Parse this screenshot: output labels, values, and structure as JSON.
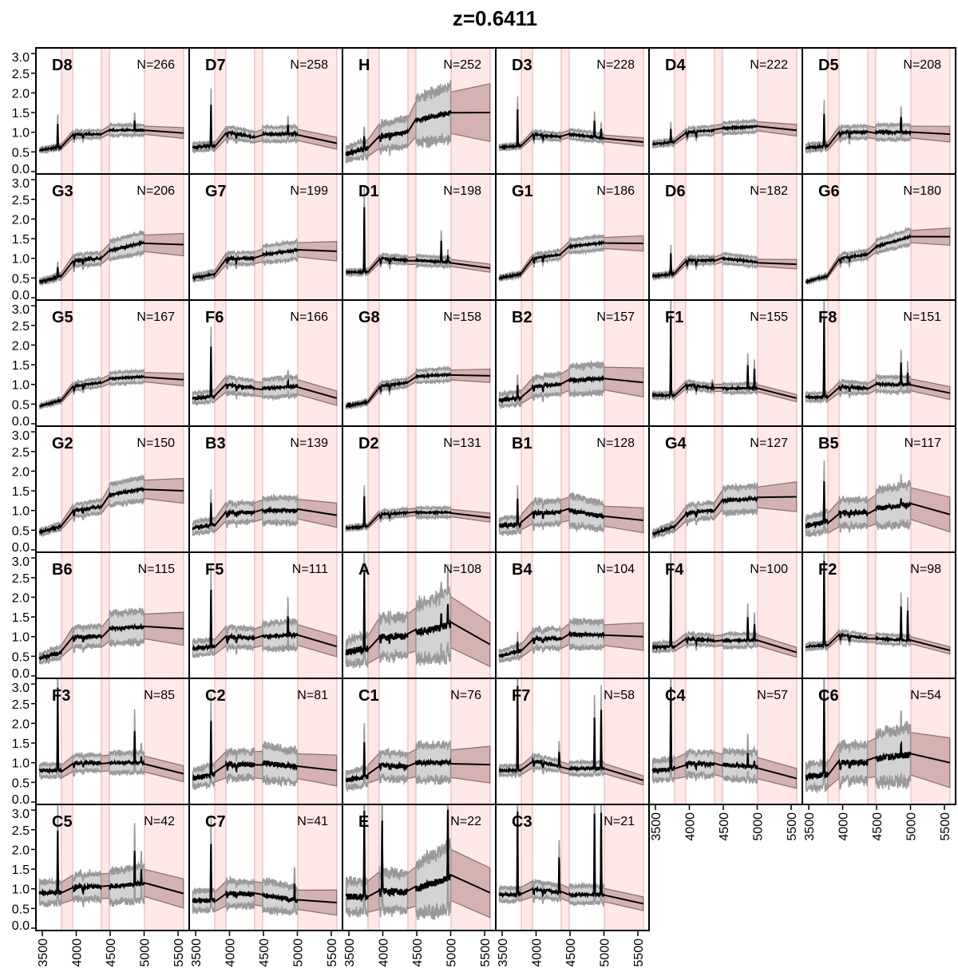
{
  "chart_data": {
    "type": "line",
    "title": "z=0.6411",
    "xlabel": "",
    "ylabel": "",
    "xlim": [
      3405,
      5665
    ],
    "ylim": [
      -0.05,
      3.1
    ],
    "xticks": [
      3500,
      4000,
      4500,
      5000,
      5500
    ],
    "xtick_labels": [
      "3500",
      "4000",
      "4500",
      "5000",
      "5500"
    ],
    "yticks": [
      0.0,
      0.5,
      1.0,
      1.5,
      2.0,
      2.5,
      3.0
    ],
    "ytick_labels": [
      "0.0",
      "0.5",
      "1.0",
      "1.5",
      "2.0",
      "2.5",
      "3.0"
    ],
    "grid": false,
    "masked_regions": [
      [
        3782,
        3947
      ],
      [
        4370,
        4488
      ],
      [
        5006,
        5582
      ]
    ],
    "data_segments": [
      [
        3460,
        3782
      ],
      [
        3947,
        4370
      ],
      [
        4488,
        5000
      ]
    ],
    "knot_wavelengths": [
      3460,
      3780,
      3950,
      4370,
      4490,
      5000,
      5580
    ],
    "colors": {
      "mean": "#000000",
      "error_band": "#d3d3d3",
      "error_edge": "#999999",
      "interp_band": "#b08585",
      "mask": "#ffd6d6"
    },
    "panels": [
      {
        "label": "D8",
        "n": "N=266",
        "knots": [
          0.55,
          0.62,
          0.95,
          0.95,
          1.05,
          1.05,
          0.98
        ],
        "err": 0.1,
        "lines": [
          [
            3727,
            1.25
          ],
          [
            4861,
            1.3
          ]
        ]
      },
      {
        "label": "D7",
        "n": "N=258",
        "knots": [
          0.62,
          0.65,
          1.0,
          0.88,
          0.95,
          0.95,
          0.72
        ],
        "err": 0.15,
        "lines": [
          [
            3727,
            1.7
          ],
          [
            4861,
            1.2
          ],
          [
            4959,
            1.0
          ]
        ]
      },
      {
        "label": "H",
        "n": "N=252",
        "knots": [
          0.45,
          0.6,
          0.9,
          1.0,
          1.3,
          1.5,
          1.5
        ],
        "err": 0.35,
        "lines": [
          [
            3727,
            0.9
          ]
        ]
      },
      {
        "label": "D3",
        "n": "N=228",
        "knots": [
          0.62,
          0.65,
          0.95,
          0.88,
          0.95,
          0.85,
          0.75
        ],
        "err": 0.1,
        "lines": [
          [
            3727,
            1.6
          ],
          [
            4861,
            1.3
          ],
          [
            4959,
            1.1
          ]
        ]
      },
      {
        "label": "D4",
        "n": "N=222",
        "knots": [
          0.7,
          0.75,
          1.0,
          1.05,
          1.1,
          1.15,
          1.05
        ],
        "err": 0.1,
        "lines": [
          [
            3727,
            1.1
          ]
        ]
      },
      {
        "label": "D5",
        "n": "N=208",
        "knots": [
          0.6,
          0.65,
          1.0,
          1.0,
          1.0,
          1.0,
          0.95
        ],
        "err": 0.15,
        "lines": [
          [
            3727,
            1.5
          ],
          [
            4861,
            1.4
          ]
        ]
      },
      {
        "label": "G3",
        "n": "N=206",
        "knots": [
          0.4,
          0.55,
          0.95,
          1.0,
          1.2,
          1.4,
          1.35
        ],
        "err": 0.15,
        "lines": [
          [
            3727,
            0.8
          ]
        ]
      },
      {
        "label": "G7",
        "n": "N=199",
        "knots": [
          0.5,
          0.6,
          1.0,
          1.0,
          1.1,
          1.2,
          1.18
        ],
        "err": 0.15,
        "lines": []
      },
      {
        "label": "D1",
        "n": "N=198",
        "knots": [
          0.65,
          0.65,
          1.0,
          0.95,
          0.95,
          0.9,
          0.75
        ],
        "err": 0.1,
        "lines": [
          [
            3727,
            2.35
          ],
          [
            4861,
            1.45
          ],
          [
            4959,
            1.1
          ]
        ]
      },
      {
        "label": "G1",
        "n": "N=186",
        "knots": [
          0.5,
          0.6,
          1.0,
          1.1,
          1.3,
          1.4,
          1.38
        ],
        "err": 0.1,
        "lines": []
      },
      {
        "label": "D6",
        "n": "N=182",
        "knots": [
          0.55,
          0.6,
          0.95,
          0.95,
          1.0,
          0.9,
          0.85
        ],
        "err": 0.1,
        "lines": [
          [
            3727,
            1.15
          ]
        ]
      },
      {
        "label": "G6",
        "n": "N=180",
        "knots": [
          0.4,
          0.55,
          1.0,
          1.1,
          1.3,
          1.55,
          1.55
        ],
        "err": 0.1,
        "lines": []
      },
      {
        "label": "G5",
        "n": "N=167",
        "knots": [
          0.45,
          0.6,
          0.95,
          1.05,
          1.15,
          1.2,
          1.12
        ],
        "err": 0.1,
        "lines": []
      },
      {
        "label": "F6",
        "n": "N=166",
        "knots": [
          0.65,
          0.7,
          1.0,
          0.9,
          0.9,
          0.95,
          0.65
        ],
        "err": 0.2,
        "lines": [
          [
            3727,
            2.0
          ],
          [
            4861,
            1.1
          ]
        ]
      },
      {
        "label": "G8",
        "n": "N=158",
        "knots": [
          0.45,
          0.55,
          0.95,
          1.05,
          1.2,
          1.25,
          1.22
        ],
        "err": 0.1,
        "lines": []
      },
      {
        "label": "B2",
        "n": "N=157",
        "knots": [
          0.6,
          0.65,
          0.95,
          1.0,
          1.1,
          1.15,
          1.05
        ],
        "err": 0.25,
        "lines": [
          [
            3727,
            1.0
          ]
        ]
      },
      {
        "label": "F1",
        "n": "N=155",
        "knots": [
          0.72,
          0.72,
          1.0,
          0.9,
          0.9,
          0.9,
          0.65
        ],
        "err": 0.1,
        "lines": [
          [
            3727,
            2.8
          ],
          [
            4340,
            1.0
          ],
          [
            4861,
            1.5
          ],
          [
            4959,
            1.4
          ]
        ]
      },
      {
        "label": "F8",
        "n": "N=151",
        "knots": [
          0.68,
          0.68,
          0.95,
          0.9,
          1.0,
          1.0,
          0.78
        ],
        "err": 0.15,
        "lines": [
          [
            3727,
            2.8
          ],
          [
            4861,
            1.55
          ],
          [
            4959,
            1.3
          ]
        ]
      },
      {
        "label": "G2",
        "n": "N=150",
        "knots": [
          0.45,
          0.6,
          1.0,
          1.1,
          1.4,
          1.55,
          1.5
        ],
        "err": 0.15,
        "lines": []
      },
      {
        "label": "B3",
        "n": "N=139",
        "knots": [
          0.55,
          0.65,
          0.95,
          0.95,
          1.0,
          1.0,
          0.88
        ],
        "err": 0.25,
        "lines": [
          [
            3727,
            1.2
          ]
        ]
      },
      {
        "label": "D2",
        "n": "N=131",
        "knots": [
          0.55,
          0.6,
          0.9,
          0.95,
          0.95,
          0.95,
          0.82
        ],
        "err": 0.1,
        "lines": [
          [
            3727,
            1.4
          ]
        ]
      },
      {
        "label": "B1",
        "n": "N=128",
        "knots": [
          0.6,
          0.65,
          0.95,
          0.95,
          1.0,
          0.85,
          0.75
        ],
        "err": 0.3,
        "lines": [
          [
            3727,
            1.3
          ]
        ]
      },
      {
        "label": "G4",
        "n": "N=127",
        "knots": [
          0.4,
          0.6,
          0.95,
          1.0,
          1.25,
          1.3,
          1.35
        ],
        "err": 0.2,
        "lines": []
      },
      {
        "label": "B5",
        "n": "N=117",
        "knots": [
          0.62,
          0.72,
          0.95,
          0.95,
          1.05,
          1.15,
          0.9
        ],
        "err": 0.35,
        "lines": [
          [
            3727,
            1.75
          ],
          [
            4861,
            1.3
          ]
        ]
      },
      {
        "label": "B6",
        "n": "N=115",
        "knots": [
          0.45,
          0.6,
          1.0,
          1.0,
          1.2,
          1.25,
          1.2
        ],
        "err": 0.25,
        "lines": []
      },
      {
        "label": "F5",
        "n": "N=111",
        "knots": [
          0.7,
          0.75,
          1.0,
          0.95,
          1.0,
          1.05,
          0.75
        ],
        "err": 0.25,
        "lines": [
          [
            3727,
            2.2
          ],
          [
            4861,
            1.5
          ]
        ]
      },
      {
        "label": "A",
        "n": "N=108",
        "knots": [
          0.6,
          0.7,
          1.0,
          1.0,
          1.1,
          1.3,
          0.8
        ],
        "err": 0.5,
        "lines": [
          [
            3727,
            2.7
          ],
          [
            4861,
            1.6
          ],
          [
            4959,
            1.9
          ]
        ]
      },
      {
        "label": "B4",
        "n": "N=104",
        "knots": [
          0.5,
          0.65,
          0.95,
          0.95,
          1.05,
          1.05,
          1.0
        ],
        "err": 0.25,
        "lines": [
          [
            3727,
            0.9
          ]
        ]
      },
      {
        "label": "F4",
        "n": "N=100",
        "knots": [
          0.72,
          0.75,
          0.95,
          0.9,
          0.9,
          0.9,
          0.6
        ],
        "err": 0.15,
        "lines": [
          [
            3727,
            2.9
          ],
          [
            4861,
            1.5
          ],
          [
            4959,
            1.3
          ]
        ]
      },
      {
        "label": "F2",
        "n": "N=98",
        "knots": [
          0.75,
          0.78,
          1.05,
          0.95,
          0.95,
          0.9,
          0.65
        ],
        "err": 0.1,
        "lines": [
          [
            3727,
            3.0
          ],
          [
            4340,
            1.0
          ],
          [
            4861,
            1.8
          ],
          [
            4959,
            1.7
          ]
        ]
      },
      {
        "label": "F3",
        "n": "N=85",
        "knots": [
          0.8,
          0.8,
          1.0,
          1.0,
          1.0,
          1.0,
          0.72
        ],
        "err": 0.2,
        "lines": [
          [
            3727,
            3.0
          ],
          [
            4861,
            1.85
          ],
          [
            4959,
            1.2
          ]
        ]
      },
      {
        "label": "C2",
        "n": "N=81",
        "knots": [
          0.6,
          0.7,
          0.95,
          0.95,
          1.0,
          0.9,
          0.8
        ],
        "err": 0.35,
        "lines": [
          [
            3727,
            2.1
          ]
        ]
      },
      {
        "label": "C1",
        "n": "N=76",
        "knots": [
          0.55,
          0.65,
          0.95,
          0.9,
          1.0,
          1.0,
          0.95
        ],
        "err": 0.35,
        "lines": [
          [
            3727,
            1.6
          ]
        ]
      },
      {
        "label": "F7",
        "n": "N=58",
        "knots": [
          0.8,
          0.8,
          1.05,
          0.9,
          0.85,
          0.85,
          0.55
        ],
        "err": 0.15,
        "lines": [
          [
            3727,
            3.0
          ],
          [
            4340,
            1.3
          ],
          [
            4861,
            2.2
          ],
          [
            4959,
            2.4
          ]
        ]
      },
      {
        "label": "C4",
        "n": "N=57",
        "knots": [
          0.8,
          0.85,
          1.0,
          0.95,
          0.95,
          0.9,
          0.6
        ],
        "err": 0.3,
        "lines": [
          [
            3727,
            3.0
          ],
          [
            4861,
            1.3
          ],
          [
            4959,
            1.0
          ]
        ]
      },
      {
        "label": "C6",
        "n": "N=54",
        "knots": [
          0.65,
          0.7,
          1.0,
          1.0,
          1.1,
          1.2,
          1.0
        ],
        "err": 0.45,
        "lines": [
          [
            3727,
            2.9
          ],
          [
            4861,
            1.5
          ]
        ]
      },
      {
        "label": "C5",
        "n": "N=42",
        "knots": [
          0.9,
          0.9,
          1.05,
          1.05,
          1.05,
          1.15,
          0.88
        ],
        "err": 0.3,
        "lines": [
          [
            3727,
            2.5
          ],
          [
            4861,
            2.0
          ],
          [
            4959,
            1.55
          ]
        ]
      },
      {
        "label": "C7",
        "n": "N=41",
        "knots": [
          0.7,
          0.7,
          0.9,
          0.85,
          0.85,
          0.7,
          0.65
        ],
        "err": 0.35,
        "lines": [
          [
            3727,
            2.2
          ],
          [
            4959,
            1.2
          ]
        ]
      },
      {
        "label": "E",
        "n": "N=22",
        "knots": [
          0.8,
          0.8,
          0.95,
          0.9,
          1.0,
          1.3,
          0.9
        ],
        "err": 0.5,
        "lines": [
          [
            3727,
            3.1
          ],
          [
            3990,
            2.8
          ],
          [
            4959,
            3.1
          ]
        ]
      },
      {
        "label": "C3",
        "n": "N=21",
        "knots": [
          0.85,
          0.85,
          1.0,
          0.9,
          0.85,
          0.85,
          0.62
        ],
        "err": 0.2,
        "lines": [
          [
            3727,
            3.0
          ],
          [
            4340,
            1.8
          ],
          [
            4861,
            3.0
          ],
          [
            4959,
            3.0
          ]
        ]
      }
    ]
  }
}
